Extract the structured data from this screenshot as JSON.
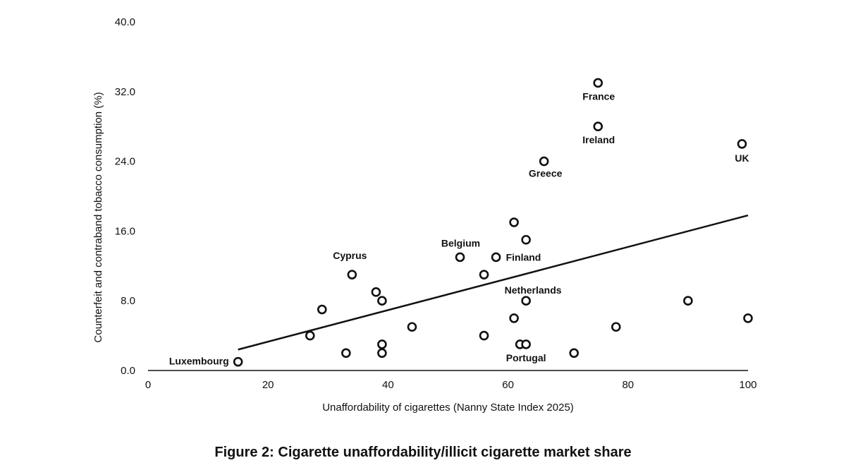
{
  "caption": "Figure 2: Cigarette unaffordability/illicit cigarette market share",
  "chart_data": {
    "type": "scatter",
    "xlabel": "Unaffordability of cigarettes (Nanny State Index 2025)",
    "ylabel": "Counterfeit and contraband tobacco consumption (%)",
    "xlim": [
      0,
      100
    ],
    "ylim": [
      0,
      40
    ],
    "x_ticks": [
      "0",
      "20",
      "40",
      "60",
      "80",
      "100"
    ],
    "y_ticks": [
      "0.0",
      "8.0",
      "16.0",
      "24.0",
      "32.0",
      "40.0"
    ],
    "grid": false,
    "trendline": {
      "x": [
        15,
        100
      ],
      "y": [
        2.4,
        17.8
      ]
    },
    "points": [
      {
        "x": 15,
        "y": 1.0,
        "label": "Luxembourg"
      },
      {
        "x": 27,
        "y": 4.0,
        "label": ""
      },
      {
        "x": 29,
        "y": 7.0,
        "label": ""
      },
      {
        "x": 33,
        "y": 2.0,
        "label": ""
      },
      {
        "x": 34,
        "y": 11.0,
        "label": "Cyprus"
      },
      {
        "x": 38,
        "y": 9.0,
        "label": ""
      },
      {
        "x": 39,
        "y": 8.0,
        "label": ""
      },
      {
        "x": 39,
        "y": 3.0,
        "label": ""
      },
      {
        "x": 39,
        "y": 2.0,
        "label": ""
      },
      {
        "x": 44,
        "y": 5.0,
        "label": ""
      },
      {
        "x": 52,
        "y": 13.0,
        "label": "Belgium"
      },
      {
        "x": 56,
        "y": 11.0,
        "label": ""
      },
      {
        "x": 56,
        "y": 4.0,
        "label": ""
      },
      {
        "x": 58,
        "y": 13.0,
        "label": "Finland"
      },
      {
        "x": 61,
        "y": 17.0,
        "label": ""
      },
      {
        "x": 61,
        "y": 6.0,
        "label": ""
      },
      {
        "x": 62,
        "y": 3.0,
        "label": ""
      },
      {
        "x": 63,
        "y": 15.0,
        "label": ""
      },
      {
        "x": 63,
        "y": 8.0,
        "label": "Netherlands"
      },
      {
        "x": 63,
        "y": 3.0,
        "label": "Portugal"
      },
      {
        "x": 66,
        "y": 24.0,
        "label": "Greece"
      },
      {
        "x": 71,
        "y": 2.0,
        "label": ""
      },
      {
        "x": 75,
        "y": 33.0,
        "label": "France"
      },
      {
        "x": 75,
        "y": 28.0,
        "label": "Ireland"
      },
      {
        "x": 78,
        "y": 5.0,
        "label": ""
      },
      {
        "x": 90,
        "y": 8.0,
        "label": ""
      },
      {
        "x": 99,
        "y": 26.0,
        "label": "UK"
      },
      {
        "x": 100,
        "y": 6.0,
        "label": ""
      }
    ]
  }
}
